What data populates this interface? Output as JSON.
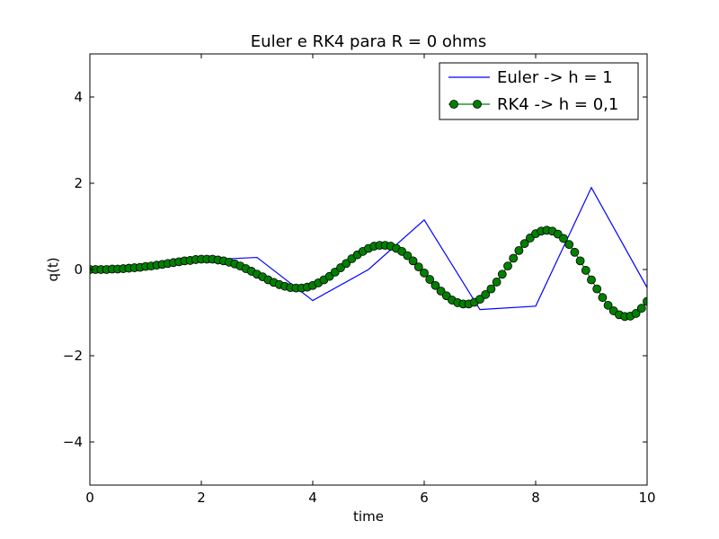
{
  "chart_data": {
    "type": "line",
    "title": "Euler e RK4 para R = 0 ohms",
    "xlabel": "time",
    "ylabel": "q(t)",
    "xlim": [
      0,
      10
    ],
    "ylim": [
      -5,
      5
    ],
    "x_ticks": [
      0,
      2,
      4,
      6,
      8,
      10
    ],
    "x_tick_labels": [
      "0",
      "2",
      "4",
      "6",
      "8",
      "10"
    ],
    "y_ticks": [
      -4,
      -2,
      0,
      2,
      4
    ],
    "y_tick_labels": [
      "−4",
      "−2",
      "0",
      "2",
      "4"
    ],
    "grid": false,
    "legend_position": "top-right",
    "series": [
      {
        "name": "Euler -> h = 1",
        "color": "#0000ff",
        "marker": "none",
        "x": [
          0,
          1,
          2,
          3,
          4,
          5,
          6,
          7,
          8,
          9,
          10
        ],
        "y": [
          0,
          0.08,
          0.22,
          0.28,
          -0.72,
          0.0,
          1.15,
          -0.93,
          -0.85,
          1.9,
          -0.42
        ]
      },
      {
        "name": "RK4 -> h = 0,1",
        "color": "#008000",
        "marker": "circle",
        "x": [
          0.0,
          0.1,
          0.2,
          0.3,
          0.4,
          0.5,
          0.6,
          0.7,
          0.8,
          0.9,
          1.0,
          1.1,
          1.2,
          1.3,
          1.4,
          1.5,
          1.6,
          1.7,
          1.8,
          1.9,
          2.0,
          2.1,
          2.2,
          2.3,
          2.4,
          2.5,
          2.6,
          2.7,
          2.8,
          2.9,
          3.0,
          3.1,
          3.2,
          3.3,
          3.4,
          3.5,
          3.6,
          3.7,
          3.8,
          3.9,
          4.0,
          4.1,
          4.2,
          4.3,
          4.4,
          4.5,
          4.6,
          4.7,
          4.8,
          4.9,
          5.0,
          5.1,
          5.2,
          5.3,
          5.4,
          5.5,
          5.6,
          5.7,
          5.8,
          5.9,
          6.0,
          6.1,
          6.2,
          6.3,
          6.4,
          6.5,
          6.6,
          6.7,
          6.8,
          6.9,
          7.0,
          7.1,
          7.2,
          7.3,
          7.4,
          7.5,
          7.6,
          7.7,
          7.8,
          7.9,
          8.0,
          8.1,
          8.2,
          8.3,
          8.4,
          8.5,
          8.6,
          8.7,
          8.8,
          8.9,
          9.0,
          9.1,
          9.2,
          9.3,
          9.4,
          9.5,
          9.6,
          9.7,
          9.8,
          9.9,
          10.0
        ],
        "y": [
          0.0,
          0.0,
          0.0,
          0.0,
          0.01,
          0.01,
          0.02,
          0.03,
          0.04,
          0.05,
          0.07,
          0.08,
          0.1,
          0.12,
          0.14,
          0.16,
          0.18,
          0.2,
          0.21,
          0.23,
          0.24,
          0.24,
          0.24,
          0.22,
          0.2,
          0.17,
          0.13,
          0.08,
          0.02,
          -0.04,
          -0.11,
          -0.17,
          -0.24,
          -0.3,
          -0.35,
          -0.39,
          -0.42,
          -0.43,
          -0.43,
          -0.41,
          -0.37,
          -0.31,
          -0.24,
          -0.16,
          -0.06,
          0.04,
          0.14,
          0.25,
          0.34,
          0.42,
          0.49,
          0.54,
          0.56,
          0.56,
          0.54,
          0.49,
          0.42,
          0.32,
          0.2,
          0.06,
          -0.08,
          -0.23,
          -0.37,
          -0.5,
          -0.61,
          -0.71,
          -0.77,
          -0.8,
          -0.8,
          -0.76,
          -0.69,
          -0.58,
          -0.45,
          -0.29,
          -0.11,
          0.08,
          0.26,
          0.44,
          0.6,
          0.73,
          0.83,
          0.89,
          0.91,
          0.89,
          0.82,
          0.72,
          0.58,
          0.4,
          0.2,
          -0.02,
          -0.24,
          -0.45,
          -0.65,
          -0.83,
          -0.96,
          -1.05,
          -1.09,
          -1.08,
          -1.02,
          -0.9,
          -0.74
        ]
      }
    ]
  }
}
